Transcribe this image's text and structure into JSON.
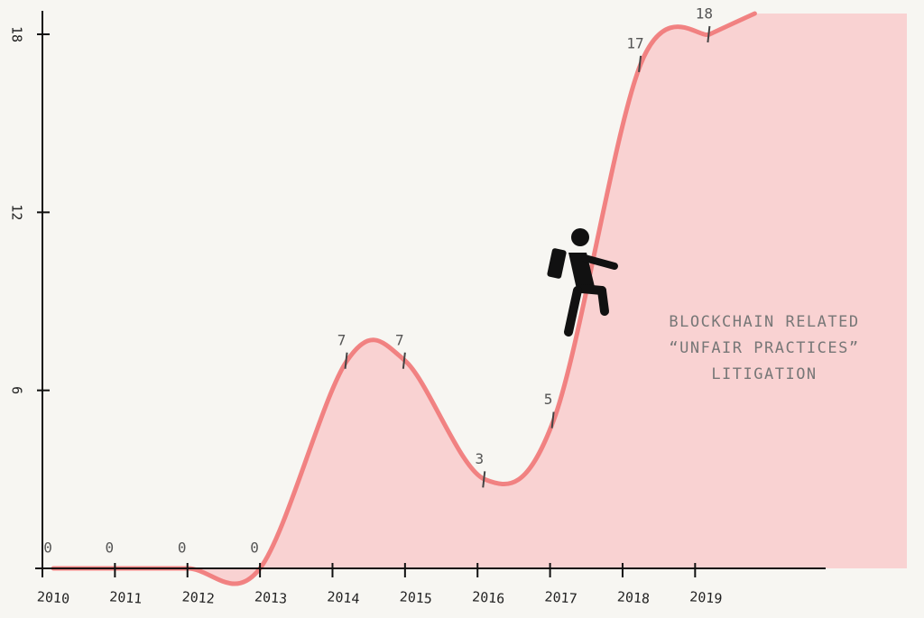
{
  "chart_data": {
    "type": "area",
    "x": [
      2010.15,
      2011,
      2012,
      2013,
      2014.2,
      2015,
      2016.1,
      2017.05,
      2018.25,
      2019.2
    ],
    "values": [
      0,
      0,
      0,
      0,
      7,
      7,
      3,
      5,
      17,
      18
    ],
    "xlim": [
      2010,
      2020.8
    ],
    "xticks": [
      2010,
      2011,
      2012,
      2013,
      2014,
      2015,
      2016,
      2017,
      2018,
      2019
    ],
    "ylim": [
      0,
      18.7
    ],
    "yticks": [
      6,
      12,
      18
    ],
    "line_color": "#ef7777",
    "fill_color": "#f9d2d2",
    "annotation": [
      "BLOCKCHAIN RELATED",
      "“UNFAIR PRACTICES”",
      "LITIGATION"
    ]
  }
}
